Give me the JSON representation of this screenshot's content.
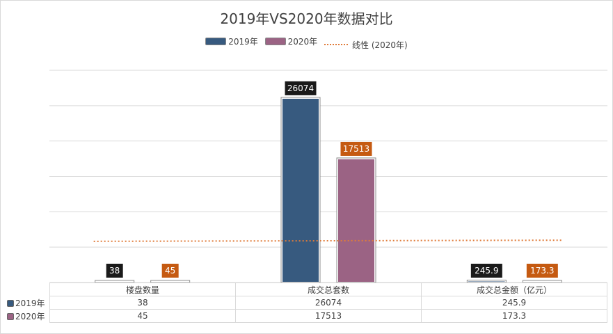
{
  "chart_data": {
    "type": "bar",
    "title": "2019年VS2020年数据对比",
    "categories": [
      "楼盘数量",
      "成交总套数",
      "成交总金额（亿元）"
    ],
    "series": [
      {
        "name": "2019年",
        "color": "#375a7f",
        "values": [
          38,
          26074,
          245.9
        ]
      },
      {
        "name": "2020年",
        "color": "#9b6384",
        "values": [
          45,
          17513,
          173.3
        ]
      }
    ],
    "trendline": {
      "name": "线性 (2020年)",
      "color": "#e07b39",
      "style": "dotted"
    },
    "ylim": [
      0,
      30000
    ],
    "grid": true,
    "legend": "top",
    "data_table": true
  }
}
